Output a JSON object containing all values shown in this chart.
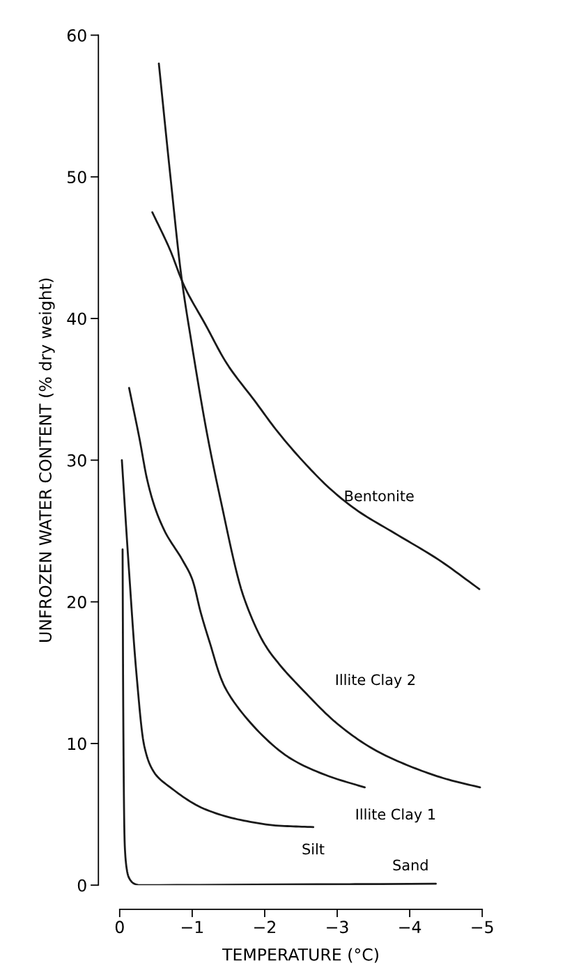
{
  "chart_data": {
    "type": "line",
    "xlabel": "TEMPERATURE (°C)",
    "ylabel": "UNFROZEN WATER CONTENT (% dry weight)",
    "xlim": [
      0,
      -5
    ],
    "ylim": [
      0,
      60
    ],
    "xticks": [
      0,
      {
        "value": -1,
        "label": "−1"
      },
      {
        "value": -2,
        "label": "−2"
      },
      {
        "value": -3,
        "label": "−3"
      },
      {
        "value": -4,
        "label": "−4"
      },
      {
        "value": -5,
        "label": "−5"
      }
    ],
    "yticks": [
      0,
      10,
      20,
      30,
      40,
      50,
      60
    ],
    "grid": false,
    "legend": false,
    "marker": "none",
    "line_style": "solid",
    "series": [
      {
        "name": "Bentonite",
        "color": "#1a1a1a",
        "x": [
          -0.45,
          -0.69,
          -0.89,
          -1.19,
          -1.48,
          -1.86,
          -2.18,
          -2.55,
          -2.92,
          -3.29,
          -3.84,
          -4.39,
          -4.96
        ],
        "values": [
          47.5,
          44.9,
          42.3,
          39.5,
          36.8,
          34.2,
          32.0,
          29.8,
          27.9,
          26.4,
          24.7,
          23.0,
          20.9
        ]
      },
      {
        "name": "Illite Clay 2",
        "color": "#1a1a1a",
        "x": [
          -0.54,
          -0.7,
          -0.85,
          -1.0,
          -1.2,
          -1.4,
          -1.7,
          -2.0,
          -2.2,
          -2.54,
          -3.0,
          -3.5,
          -4.0,
          -4.5,
          -4.97
        ],
        "values": [
          58,
          50,
          43,
          38,
          32,
          27,
          20.5,
          17,
          15.6,
          13.7,
          11.4,
          9.6,
          8.4,
          7.5,
          6.9
        ]
      },
      {
        "name": "Illite Clay 1",
        "color": "#1a1a1a",
        "x": [
          -0.13,
          -0.27,
          -0.38,
          -0.49,
          -0.63,
          -0.86,
          -1.0,
          -1.12,
          -1.25,
          -1.43,
          -1.85,
          -2.37,
          -2.88,
          -3.38
        ],
        "values": [
          35.1,
          31.6,
          28.6,
          26.6,
          24.9,
          23.0,
          21.6,
          19.2,
          17.0,
          14.2,
          11.2,
          8.9,
          7.7,
          6.9
        ]
      },
      {
        "name": "Silt",
        "color": "#1a1a1a",
        "x": [
          -0.03,
          -0.13,
          -0.23,
          -0.34,
          -0.47,
          -0.75,
          -1.16,
          -1.67,
          -2.19,
          -2.67
        ],
        "values": [
          30.0,
          22.1,
          15.0,
          9.8,
          8.0,
          6.7,
          5.4,
          4.6,
          4.2,
          4.1
        ]
      },
      {
        "name": "Sand",
        "color": "#1a1a1a",
        "x": [
          -0.04,
          -0.05,
          -0.07,
          -0.13,
          -0.3,
          -4.36
        ],
        "values": [
          23.7,
          11.6,
          2.8,
          0.5,
          0.0,
          0.1
        ]
      }
    ]
  }
}
